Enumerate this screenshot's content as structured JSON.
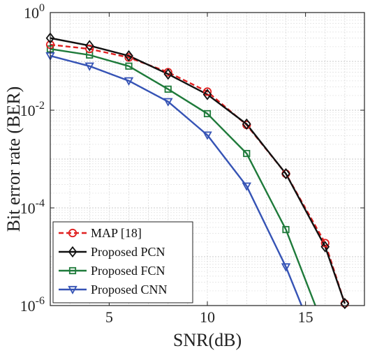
{
  "chart_data": {
    "type": "line",
    "title": "",
    "xlabel": "SNR(dB)",
    "ylabel": "Bit error rate (BER)",
    "xlim": [
      2,
      18
    ],
    "ylim": [
      1e-06,
      1
    ],
    "y_scale": "log",
    "grid": true,
    "legend_position": "bottom-left",
    "x_ticks": [
      5,
      10,
      15
    ],
    "y_ticks": [
      1e-06,
      0.0001,
      0.01,
      1
    ],
    "series": [
      {
        "name": "MAP [18]",
        "color": "#e02020",
        "line_style": "dashed",
        "marker": "circle",
        "x": [
          2,
          4,
          6,
          8,
          10,
          12,
          14,
          16,
          17
        ],
        "y": [
          0.22,
          0.18,
          0.12,
          0.06,
          0.024,
          0.005,
          0.0005,
          1.9e-05,
          1.1e-06
        ]
      },
      {
        "name": "Proposed PCN",
        "color": "#111111",
        "line_style": "solid",
        "marker": "diamond",
        "x": [
          2,
          4,
          6,
          8,
          10,
          12,
          14,
          16,
          17
        ],
        "y": [
          0.3,
          0.21,
          0.13,
          0.055,
          0.021,
          0.0052,
          0.0005,
          1.6e-05,
          1.1e-06
        ]
      },
      {
        "name": "Proposed FCN",
        "color": "#1e7a3a",
        "line_style": "solid",
        "marker": "square",
        "x": [
          2,
          4,
          6,
          8,
          10,
          12,
          14,
          15.5
        ],
        "y": [
          0.18,
          0.135,
          0.08,
          0.027,
          0.0085,
          0.0013,
          3.6e-05,
          1e-06
        ]
      },
      {
        "name": "Proposed CNN",
        "color": "#3553b5",
        "line_style": "solid",
        "marker": "triangle-down",
        "x": [
          2,
          4,
          6,
          8,
          10,
          12,
          14,
          14.8
        ],
        "y": [
          0.13,
          0.08,
          0.04,
          0.015,
          0.0031,
          0.00028,
          6.2e-06,
          1e-06
        ]
      }
    ]
  }
}
